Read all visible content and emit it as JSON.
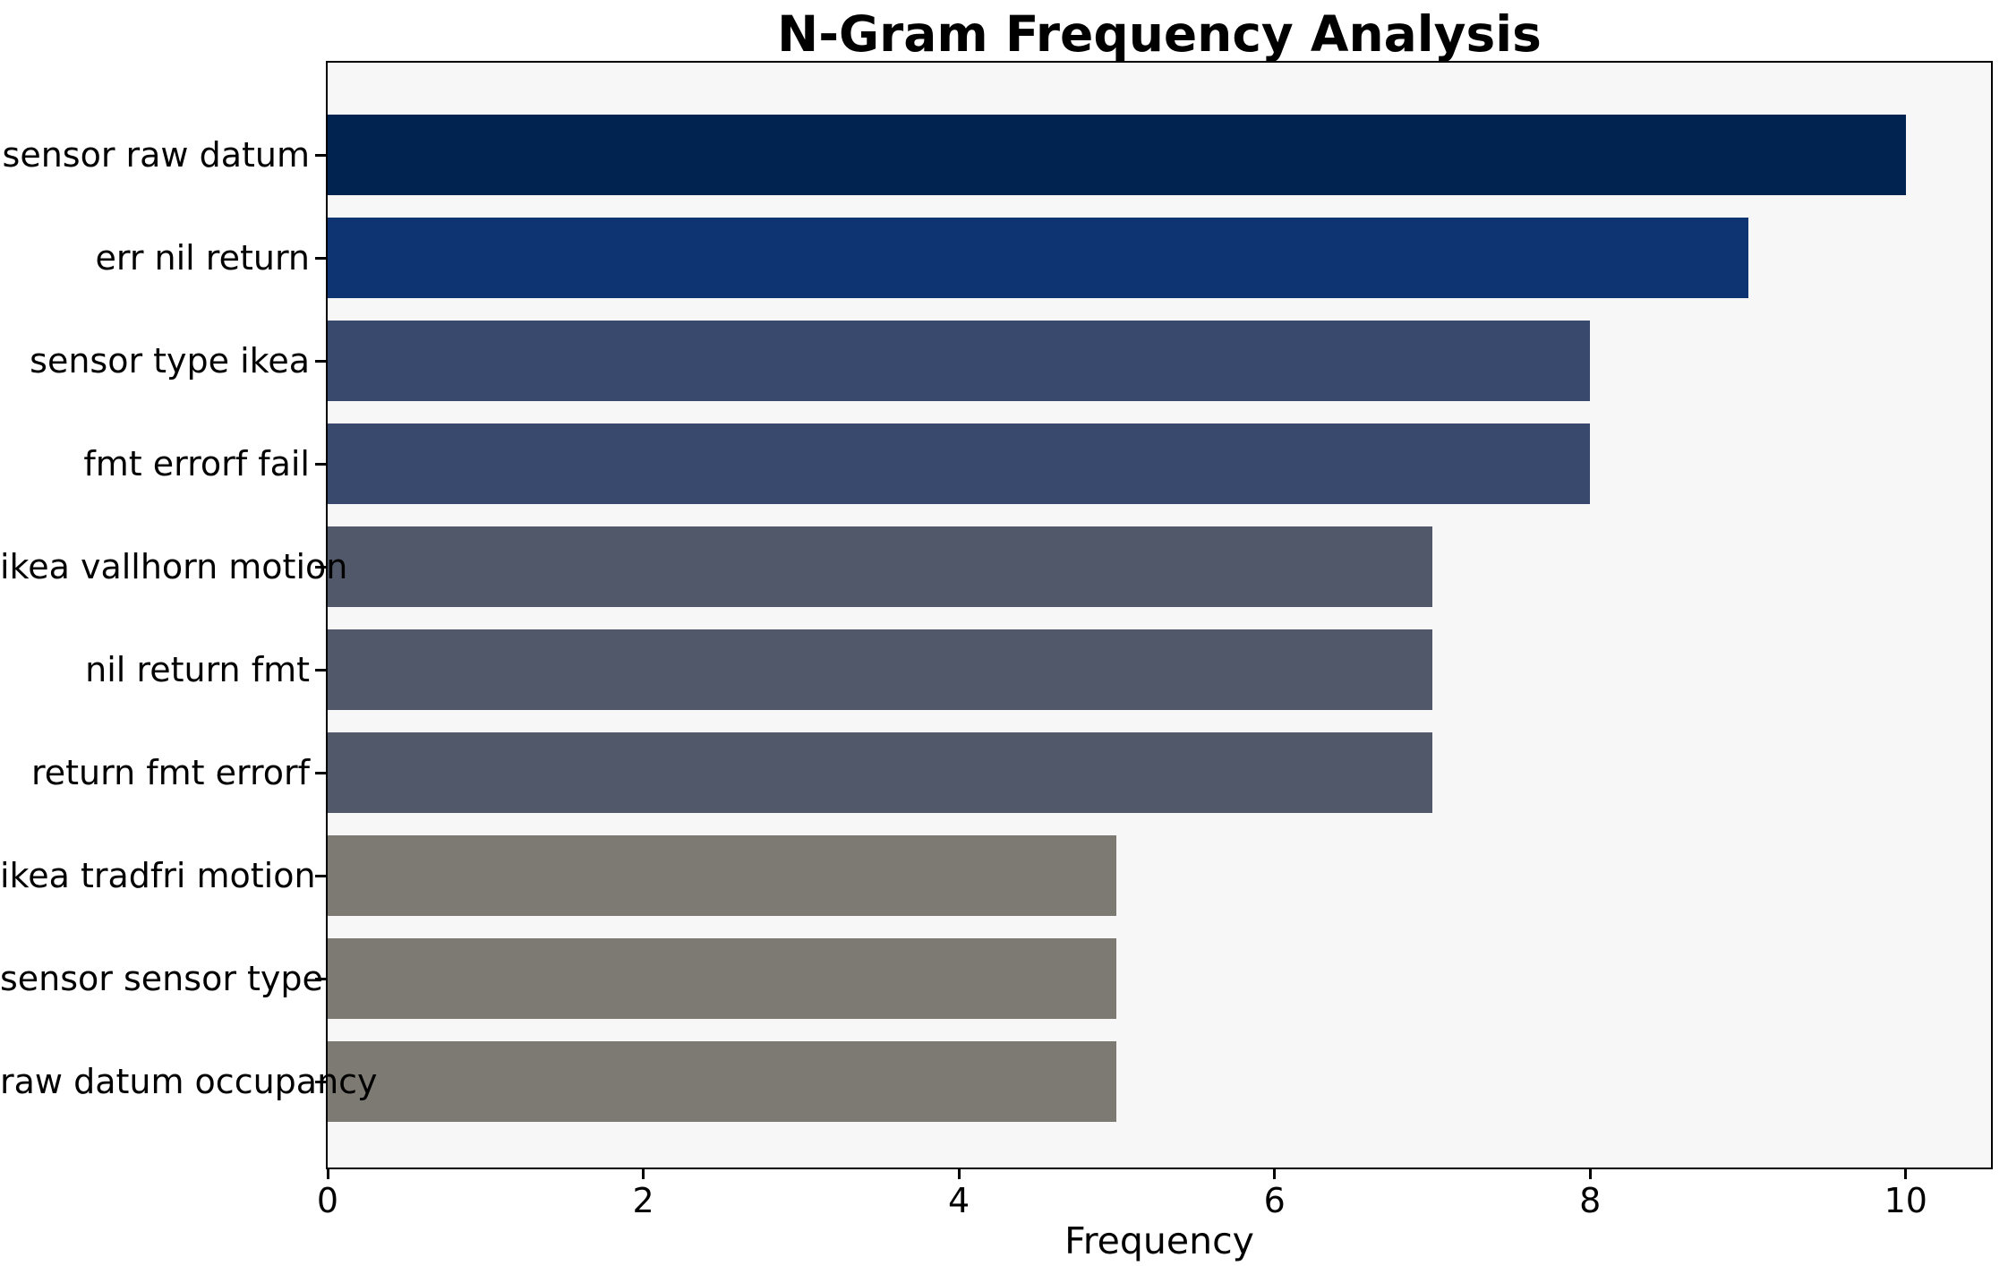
{
  "chart_data": {
    "type": "bar",
    "orientation": "horizontal",
    "title": "N-Gram Frequency Analysis",
    "xlabel": "Frequency",
    "ylabel": "",
    "categories": [
      "sensor raw datum",
      "err nil return",
      "sensor type ikea",
      "fmt errorf fail",
      "ikea vallhorn motion",
      "nil return fmt",
      "return fmt errorf",
      "ikea tradfri motion",
      "sensor sensor type",
      "raw datum occupancy"
    ],
    "values": [
      10,
      9,
      8,
      8,
      7,
      7,
      7,
      5,
      5,
      5
    ],
    "bar_colors": [
      "#002350",
      "#0e3572",
      "#39496e",
      "#39496e",
      "#505869",
      "#505869",
      "#505869",
      "#7c7a72",
      "#7c7a72",
      "#7c7a72"
    ],
    "x_ticks": [
      0,
      2,
      4,
      6,
      8,
      10
    ],
    "xlim": [
      0,
      10.54
    ],
    "grid": false,
    "legend_position": "none",
    "plot_background": "#f7f7f7",
    "figure_background": "#ffffff",
    "spine_color": "#000000"
  }
}
